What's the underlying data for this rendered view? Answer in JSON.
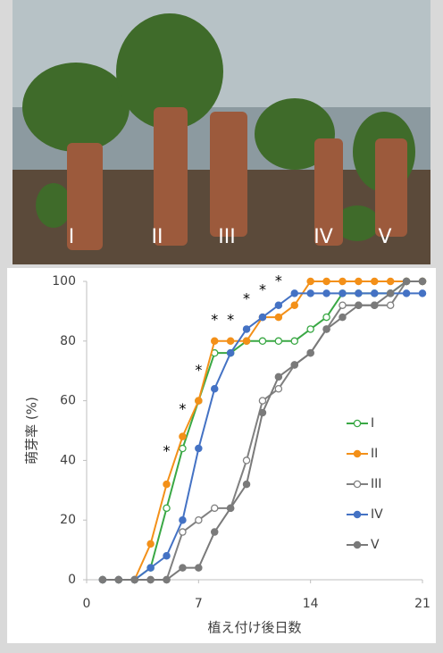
{
  "photo": {
    "labels": [
      "I",
      "II",
      "III",
      "IV",
      "V"
    ]
  },
  "chart_data": {
    "type": "line",
    "x": [
      1,
      2,
      3,
      4,
      5,
      6,
      7,
      8,
      9,
      10,
      11,
      12,
      13,
      14,
      15,
      16,
      17,
      18,
      19,
      20,
      21
    ],
    "series": [
      {
        "name": "I",
        "color": "#3aa845",
        "filled": false,
        "values": [
          0,
          0,
          0,
          4,
          24,
          44,
          60,
          76,
          76,
          80,
          80,
          80,
          80,
          84,
          88,
          96,
          96,
          96,
          96,
          100,
          100
        ]
      },
      {
        "name": "II",
        "color": "#f39019",
        "filled": true,
        "values": [
          0,
          0,
          0,
          12,
          32,
          48,
          60,
          80,
          80,
          80,
          88,
          88,
          92,
          100,
          100,
          100,
          100,
          100,
          100,
          100,
          100
        ]
      },
      {
        "name": "III",
        "color": "#808080",
        "filled": false,
        "values": [
          0,
          0,
          0,
          0,
          0,
          16,
          20,
          24,
          24,
          40,
          60,
          64,
          72,
          76,
          84,
          92,
          92,
          92,
          92,
          100,
          100
        ]
      },
      {
        "name": "IV",
        "color": "#4472c4",
        "filled": true,
        "values": [
          0,
          0,
          0,
          4,
          8,
          20,
          44,
          64,
          76,
          84,
          88,
          92,
          96,
          96,
          96,
          96,
          96,
          96,
          96,
          96,
          96
        ]
      },
      {
        "name": "V",
        "color": "#7a7a7a",
        "filled": true,
        "values": [
          0,
          0,
          0,
          0,
          0,
          4,
          4,
          16,
          24,
          32,
          56,
          68,
          72,
          76,
          84,
          88,
          92,
          92,
          96,
          100,
          100
        ]
      }
    ],
    "xlim": [
      0,
      21
    ],
    "xticks": [
      0,
      7,
      14,
      21
    ],
    "ylim": [
      0,
      100
    ],
    "yticks": [
      0,
      20,
      40,
      60,
      80,
      100
    ],
    "xlabel": "植え付け後日数",
    "ylabel": "萌芽率 (%)",
    "annotations": [
      {
        "text": "*",
        "x": 5,
        "y": 43
      },
      {
        "text": "*",
        "x": 6,
        "y": 57
      },
      {
        "text": "*",
        "x": 7,
        "y": 70
      },
      {
        "text": "*",
        "x": 8,
        "y": 87
      },
      {
        "text": "*",
        "x": 9,
        "y": 87
      },
      {
        "text": "*",
        "x": 10,
        "y": 94
      },
      {
        "text": "*",
        "x": 11,
        "y": 97
      },
      {
        "text": "*",
        "x": 12,
        "y": 100
      }
    ]
  }
}
